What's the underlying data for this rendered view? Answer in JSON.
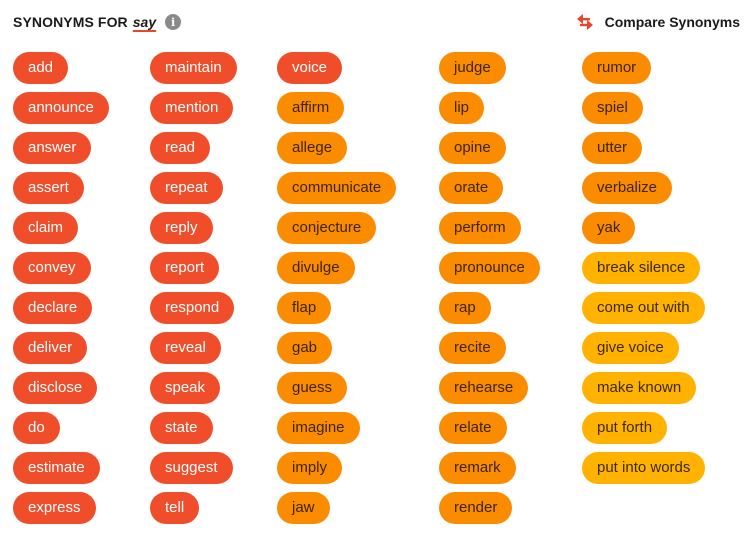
{
  "header": {
    "prefix": "SYNONYMS FOR",
    "word": "say",
    "info_icon": "info-icon",
    "compare_label": "Compare Synonyms",
    "compare_icon": "swap-arrows-icon"
  },
  "colors": {
    "strong": "#f04e2b",
    "medium": "#fb8c00",
    "weak": "#ffb300",
    "accent_underline": "#e8462c"
  },
  "columns": [
    [
      {
        "label": "add",
        "strength": "strong"
      },
      {
        "label": "announce",
        "strength": "strong"
      },
      {
        "label": "answer",
        "strength": "strong"
      },
      {
        "label": "assert",
        "strength": "strong"
      },
      {
        "label": "claim",
        "strength": "strong"
      },
      {
        "label": "convey",
        "strength": "strong"
      },
      {
        "label": "declare",
        "strength": "strong"
      },
      {
        "label": "deliver",
        "strength": "strong"
      },
      {
        "label": "disclose",
        "strength": "strong"
      },
      {
        "label": "do",
        "strength": "strong"
      },
      {
        "label": "estimate",
        "strength": "strong"
      },
      {
        "label": "express",
        "strength": "strong"
      }
    ],
    [
      {
        "label": "maintain",
        "strength": "strong"
      },
      {
        "label": "mention",
        "strength": "strong"
      },
      {
        "label": "read",
        "strength": "strong"
      },
      {
        "label": "repeat",
        "strength": "strong"
      },
      {
        "label": "reply",
        "strength": "strong"
      },
      {
        "label": "report",
        "strength": "strong"
      },
      {
        "label": "respond",
        "strength": "strong"
      },
      {
        "label": "reveal",
        "strength": "strong"
      },
      {
        "label": "speak",
        "strength": "strong"
      },
      {
        "label": "state",
        "strength": "strong"
      },
      {
        "label": "suggest",
        "strength": "strong"
      },
      {
        "label": "tell",
        "strength": "strong"
      }
    ],
    [
      {
        "label": "voice",
        "strength": "strong"
      },
      {
        "label": "affirm",
        "strength": "medium"
      },
      {
        "label": "allege",
        "strength": "medium"
      },
      {
        "label": "communicate",
        "strength": "medium"
      },
      {
        "label": "conjecture",
        "strength": "medium"
      },
      {
        "label": "divulge",
        "strength": "medium"
      },
      {
        "label": "flap",
        "strength": "medium"
      },
      {
        "label": "gab",
        "strength": "medium"
      },
      {
        "label": "guess",
        "strength": "medium"
      },
      {
        "label": "imagine",
        "strength": "medium"
      },
      {
        "label": "imply",
        "strength": "medium"
      },
      {
        "label": "jaw",
        "strength": "medium"
      }
    ],
    [
      {
        "label": "judge",
        "strength": "medium"
      },
      {
        "label": "lip",
        "strength": "medium"
      },
      {
        "label": "opine",
        "strength": "medium"
      },
      {
        "label": "orate",
        "strength": "medium"
      },
      {
        "label": "perform",
        "strength": "medium"
      },
      {
        "label": "pronounce",
        "strength": "medium"
      },
      {
        "label": "rap",
        "strength": "medium"
      },
      {
        "label": "recite",
        "strength": "medium"
      },
      {
        "label": "rehearse",
        "strength": "medium"
      },
      {
        "label": "relate",
        "strength": "medium"
      },
      {
        "label": "remark",
        "strength": "medium"
      },
      {
        "label": "render",
        "strength": "medium"
      }
    ],
    [
      {
        "label": "rumor",
        "strength": "medium"
      },
      {
        "label": "spiel",
        "strength": "medium"
      },
      {
        "label": "utter",
        "strength": "medium"
      },
      {
        "label": "verbalize",
        "strength": "medium"
      },
      {
        "label": "yak",
        "strength": "medium"
      },
      {
        "label": "break silence",
        "strength": "weak"
      },
      {
        "label": "come out with",
        "strength": "weak"
      },
      {
        "label": "give voice",
        "strength": "weak"
      },
      {
        "label": "make known",
        "strength": "weak"
      },
      {
        "label": "put forth",
        "strength": "weak"
      },
      {
        "label": "put into words",
        "strength": "weak"
      }
    ]
  ]
}
